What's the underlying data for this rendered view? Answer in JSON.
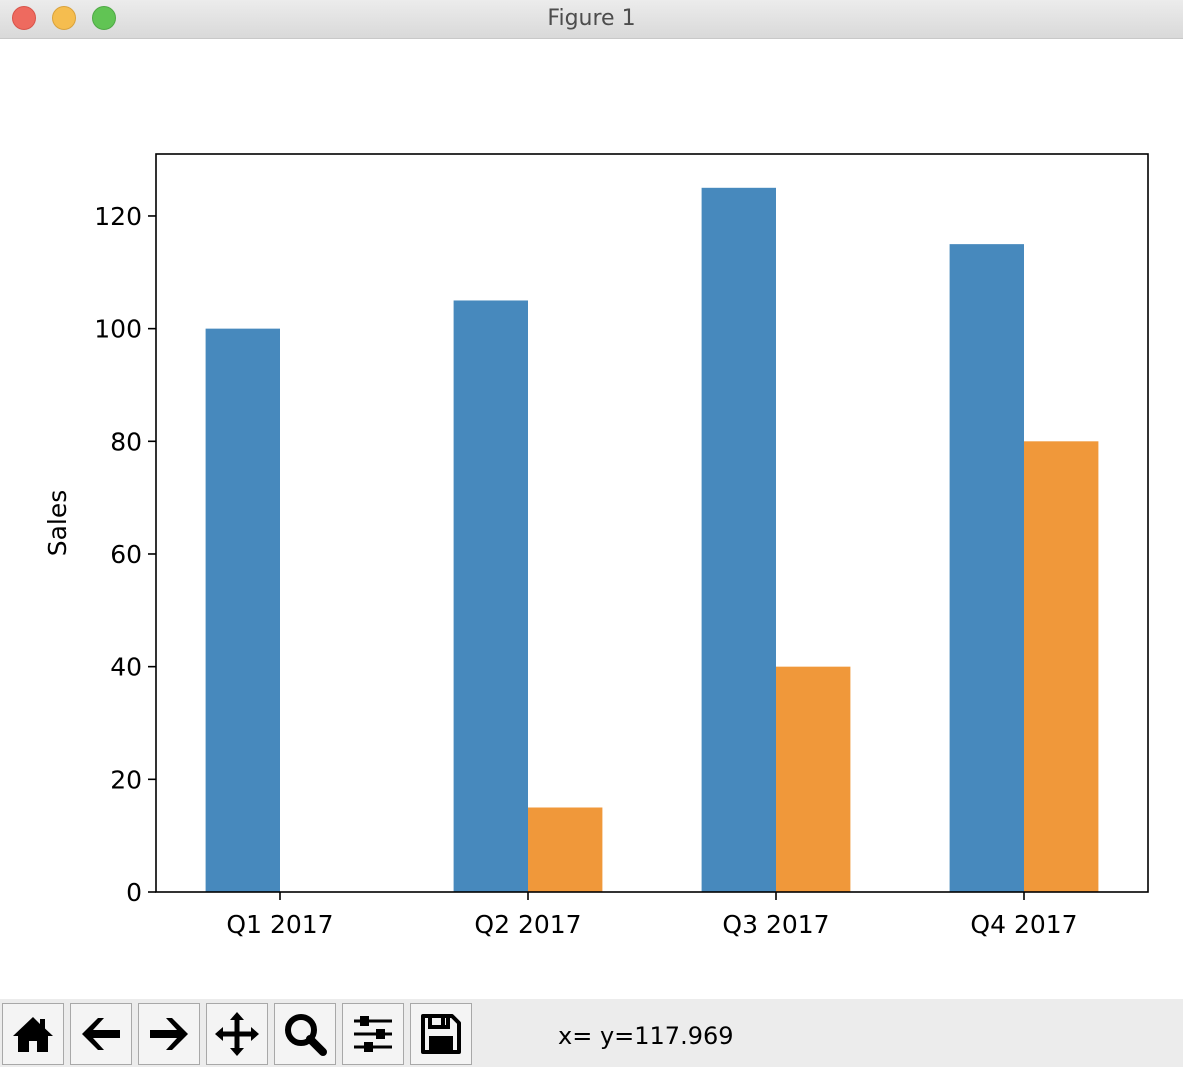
{
  "window": {
    "title": "Figure 1"
  },
  "toolbar": {
    "buttons": [
      {
        "name": "home-button",
        "icon": "home-icon"
      },
      {
        "name": "back-button",
        "icon": "arrow-left-icon"
      },
      {
        "name": "forward-button",
        "icon": "arrow-right-icon"
      },
      {
        "name": "pan-button",
        "icon": "move-icon"
      },
      {
        "name": "zoom-button",
        "icon": "magnifier-icon"
      },
      {
        "name": "configure-subplots-button",
        "icon": "sliders-icon"
      },
      {
        "name": "save-button",
        "icon": "floppy-disk-icon"
      }
    ],
    "coordinates": "x= y=117.969"
  },
  "chart_data": {
    "type": "bar",
    "categories": [
      "Q1 2017",
      "Q2 2017",
      "Q3 2017",
      "Q4 2017"
    ],
    "series": [
      {
        "values": [
          100,
          105,
          125,
          115
        ],
        "color": "#4789bd"
      },
      {
        "values": [
          0,
          15,
          40,
          80
        ],
        "color": "#f0983a"
      }
    ],
    "ylabel": "Sales",
    "ylim": [
      0,
      131
    ],
    "yticks": [
      0,
      20,
      40,
      60,
      80,
      100,
      120
    ],
    "grid": false,
    "legend": "none"
  }
}
